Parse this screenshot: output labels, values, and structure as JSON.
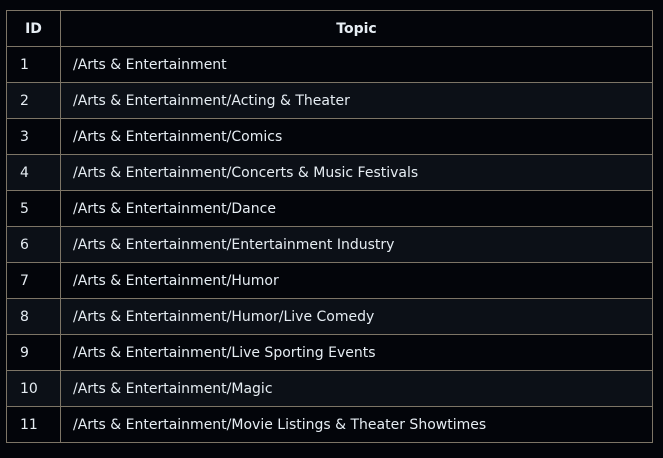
{
  "table": {
    "headers": [
      "ID",
      "Topic"
    ],
    "rows": [
      {
        "id": "1",
        "topic": "/Arts & Entertainment"
      },
      {
        "id": "2",
        "topic": "/Arts & Entertainment/Acting & Theater"
      },
      {
        "id": "3",
        "topic": "/Arts & Entertainment/Comics"
      },
      {
        "id": "4",
        "topic": "/Arts & Entertainment/Concerts & Music Festivals"
      },
      {
        "id": "5",
        "topic": "/Arts & Entertainment/Dance"
      },
      {
        "id": "6",
        "topic": "/Arts & Entertainment/Entertainment Industry"
      },
      {
        "id": "7",
        "topic": "/Arts & Entertainment/Humor"
      },
      {
        "id": "8",
        "topic": "/Arts & Entertainment/Humor/Live Comedy"
      },
      {
        "id": "9",
        "topic": "/Arts & Entertainment/Live Sporting Events"
      },
      {
        "id": "10",
        "topic": "/Arts & Entertainment/Magic"
      },
      {
        "id": "11",
        "topic": "/Arts & Entertainment/Movie Listings & Theater Showtimes"
      }
    ]
  }
}
